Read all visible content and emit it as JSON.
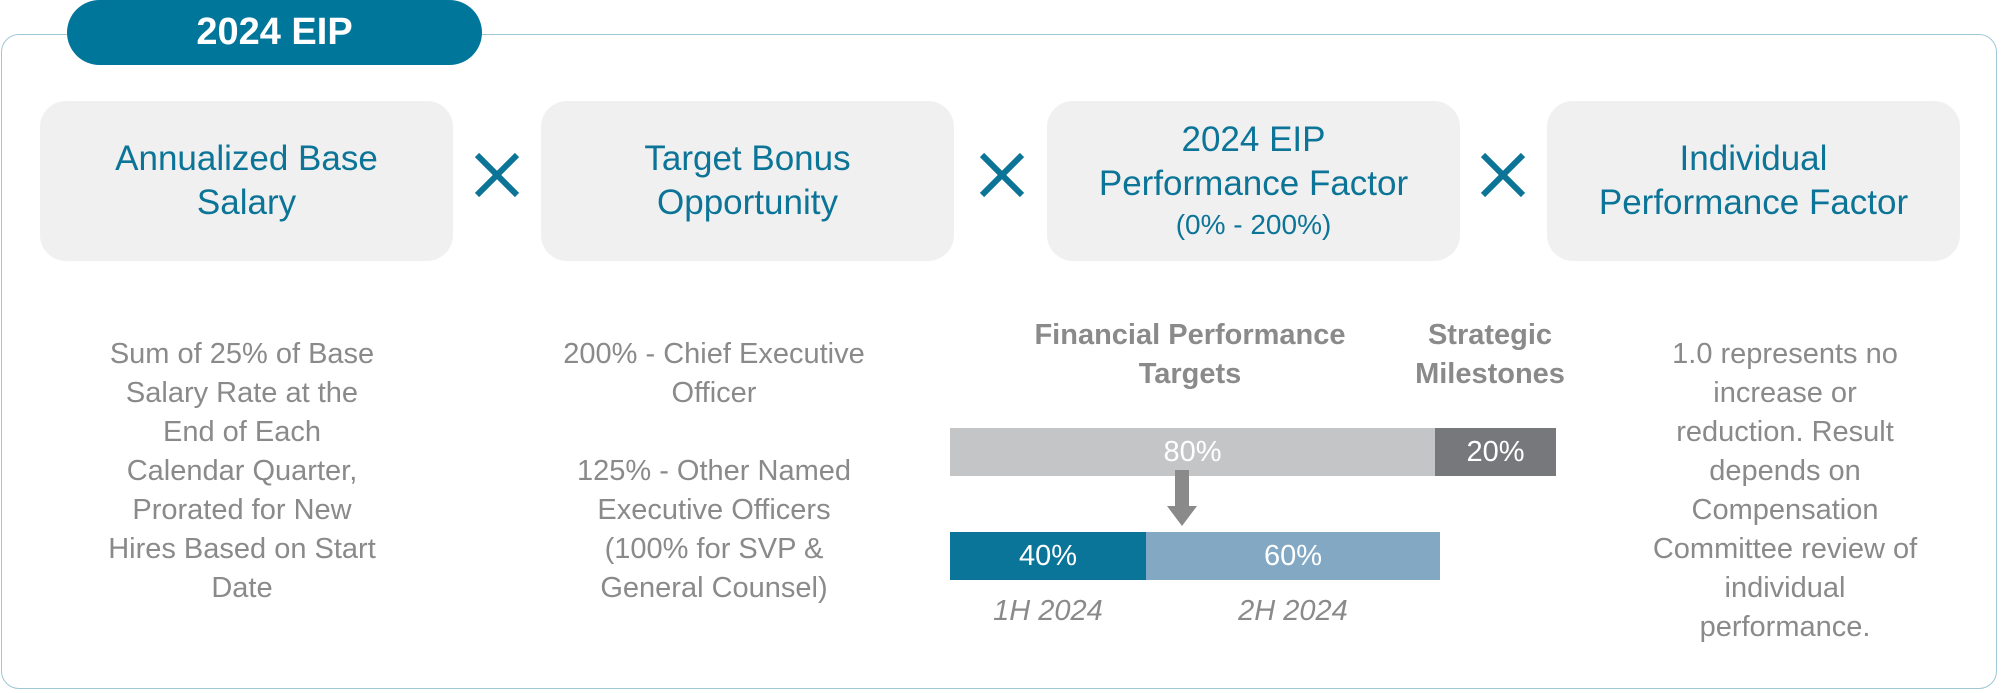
{
  "title": "2024 EIP",
  "factors": [
    {
      "lines": [
        "Annualized Base",
        "Salary"
      ]
    },
    {
      "lines": [
        "Target Bonus",
        "Opportunity"
      ]
    },
    {
      "lines": [
        "2024 EIP",
        "Performance Factor"
      ],
      "sub": "(0% - 200%)"
    },
    {
      "lines": [
        "Individual",
        "Performance Factor"
      ]
    }
  ],
  "operator_icon": "multiply-icon",
  "colors": {
    "brand": "#00769b",
    "box_bg": "#f0f0f0",
    "text_gray": "#8a8a8a",
    "bar_light_gray": "#c4c5c7",
    "bar_dark_gray": "#77787b",
    "bar_blue": "#0a7499",
    "bar_light_blue": "#82a8c3"
  },
  "descriptions": {
    "base_salary": [
      "Sum of 25% of Base",
      "Salary Rate at the",
      "End of Each",
      "Calendar Quarter,",
      "Prorated for New",
      "Hires Based on Start",
      "Date"
    ],
    "target_bonus": {
      "ceo": [
        "200% - Chief Executive",
        "Officer"
      ],
      "other": [
        "125% - Other Named",
        "Executive Officers",
        "(100% for SVP &",
        "General Counsel)"
      ]
    },
    "individual": [
      "1.0 represents no",
      "increase or",
      "reduction. Result",
      "depends on",
      "Compensation",
      "Committee review of",
      "individual",
      "performance."
    ]
  },
  "performance": {
    "financial_heading": [
      "Financial Performance",
      "Targets"
    ],
    "strategic_heading": [
      "Strategic",
      "Milestones"
    ],
    "financial_label": "80%",
    "financial_pct": 80,
    "strategic_label": "20%",
    "strategic_pct": 20,
    "first_half_label": "40%",
    "first_half_pct": 40,
    "second_half_label": "60%",
    "second_half_pct": 60,
    "first_half_caption": "1H 2024",
    "second_half_caption": "2H 2024",
    "arrow_icon": "down-arrow-icon"
  }
}
